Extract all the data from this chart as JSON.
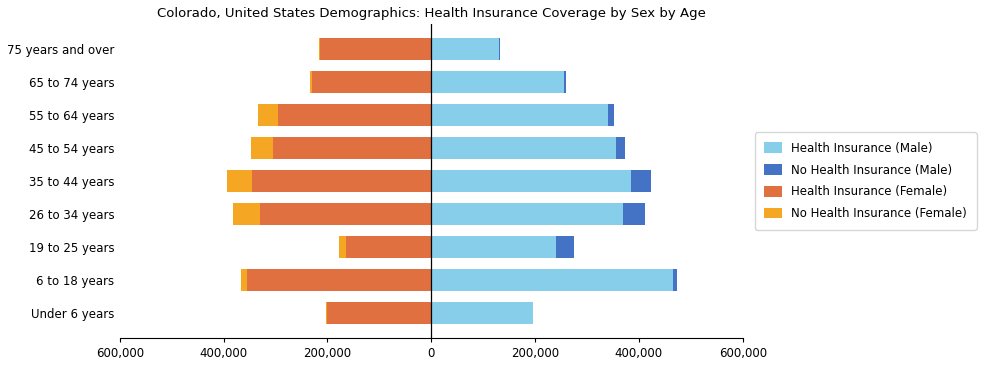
{
  "title": "Colorado, United States Demographics: Health Insurance Coverage by Sex by Age",
  "age_groups": [
    "Under 6 years",
    "6 to 18 years",
    "19 to 25 years",
    "26 to 34 years",
    "35 to 44 years",
    "45 to 54 years",
    "55 to 64 years",
    "65 to 74 years",
    "75 years and over"
  ],
  "male_insured": [
    195000,
    465000,
    240000,
    370000,
    385000,
    355000,
    340000,
    255000,
    130000
  ],
  "male_uninsured": [
    0,
    8000,
    35000,
    42000,
    38000,
    18000,
    12000,
    4000,
    2000
  ],
  "female_insured": [
    200000,
    355000,
    165000,
    330000,
    345000,
    305000,
    295000,
    230000,
    215000
  ],
  "female_uninsured": [
    3000,
    12000,
    12000,
    52000,
    48000,
    43000,
    38000,
    4000,
    2000
  ],
  "colors": {
    "male_insured": "#87CEEB",
    "male_uninsured": "#4472C4",
    "female_insured": "#E07040",
    "female_uninsured": "#F5A623"
  },
  "xlim": [
    -600000,
    600000
  ],
  "xticks": [
    -600000,
    -400000,
    -200000,
    0,
    200000,
    400000,
    600000
  ],
  "xtick_labels": [
    "600,000",
    "400,000",
    "200,000",
    "0",
    "200,000",
    "400,000",
    "600,000"
  ],
  "bar_height": 0.65,
  "title_fontsize": 9.5,
  "tick_fontsize": 8.5,
  "legend_fontsize": 8.5
}
